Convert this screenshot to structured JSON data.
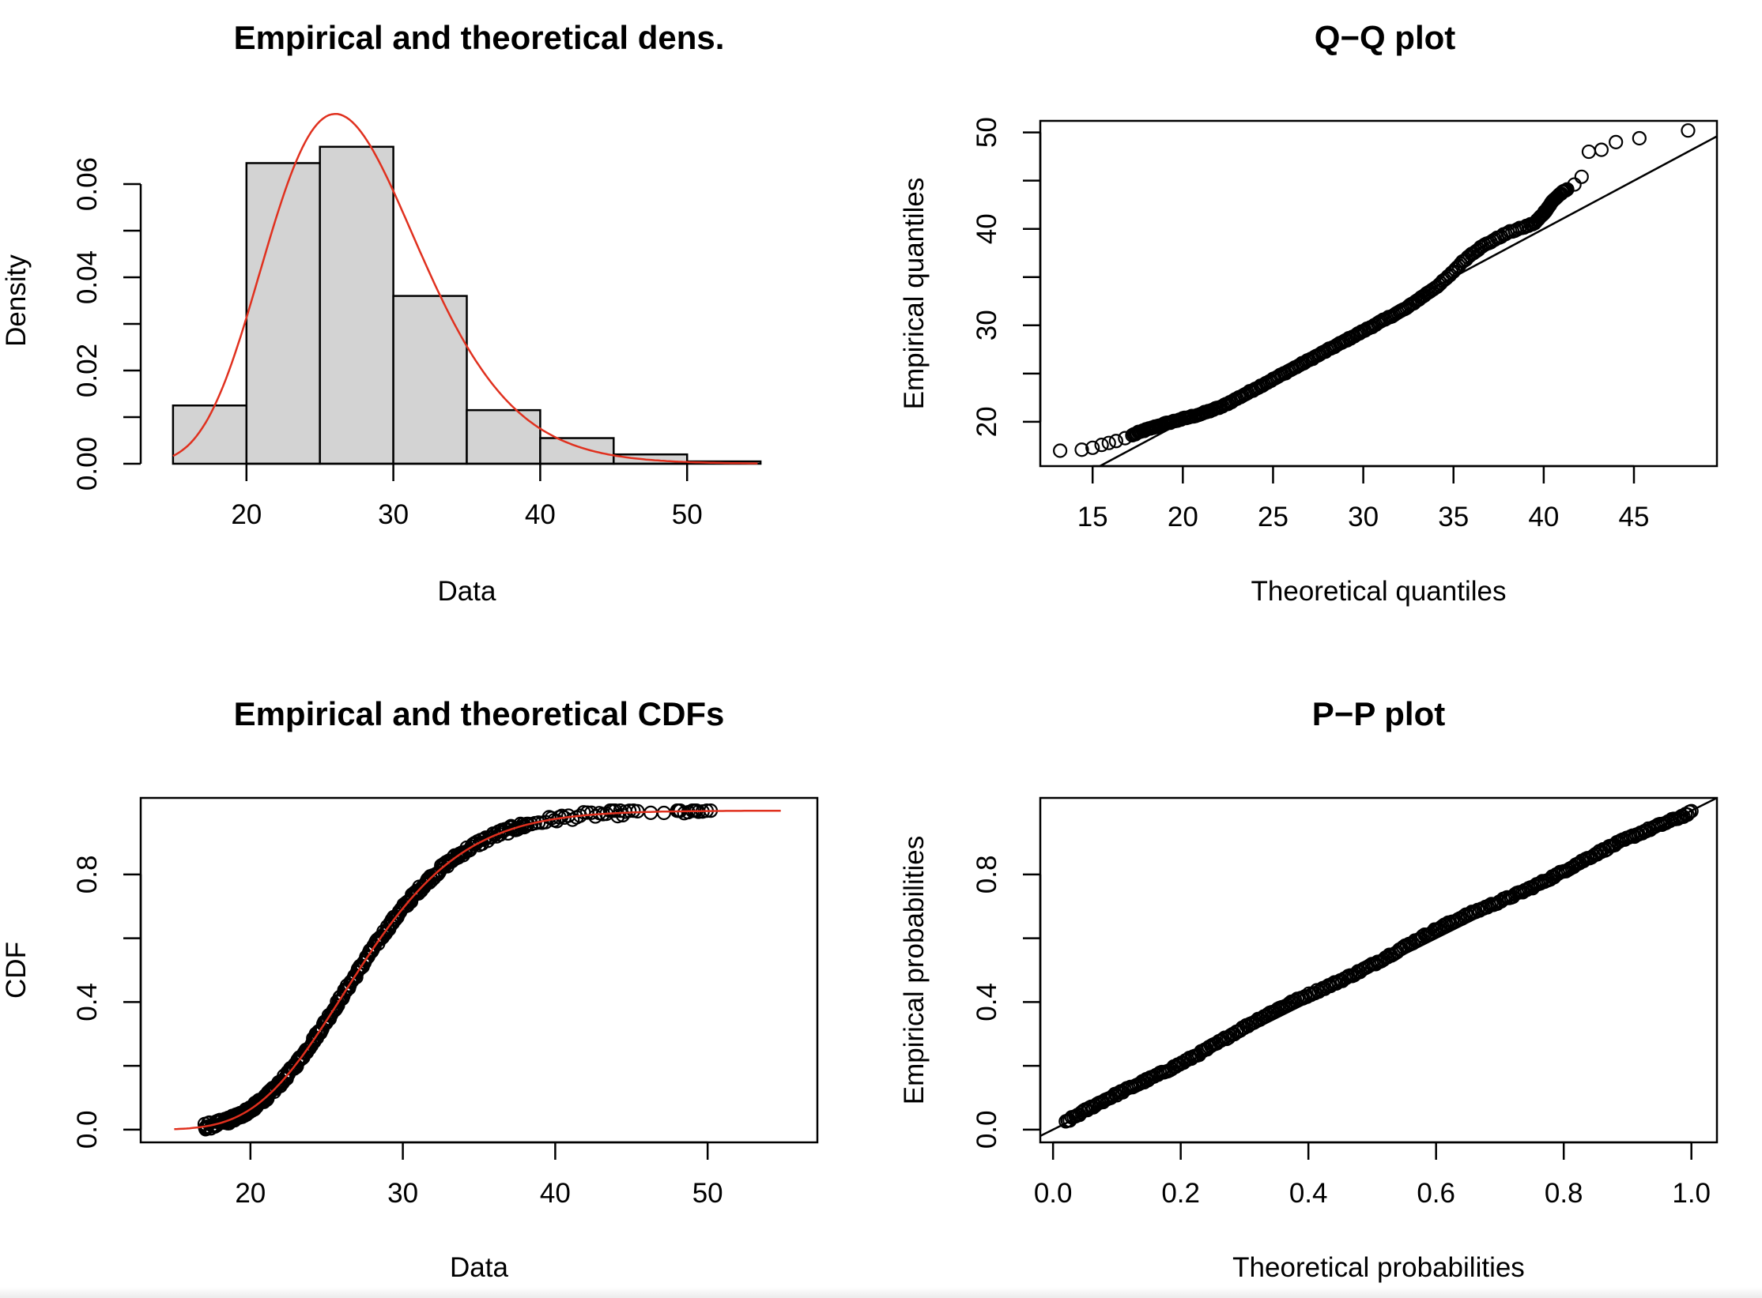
{
  "colors": {
    "axis": "#000000",
    "fit_line": "#e0301e",
    "hist_fill": "#d3d3d3",
    "point_stroke": "#000000"
  },
  "chart_data": [
    {
      "type": "bar",
      "title": "Empirical and theoretical dens.",
      "xlabel": "Data",
      "ylabel": "Density",
      "bins": [
        [
          15,
          20
        ],
        [
          20,
          25
        ],
        [
          25,
          30
        ],
        [
          30,
          35
        ],
        [
          35,
          40
        ],
        [
          40,
          45
        ],
        [
          45,
          50
        ],
        [
          50,
          55
        ]
      ],
      "values": [
        0.0125,
        0.0645,
        0.068,
        0.036,
        0.0115,
        0.0055,
        0.002,
        0.0005
      ],
      "xlim": [
        12.8,
        57.2
      ],
      "ylim": [
        0,
        0.07
      ],
      "xticks": [
        20,
        30,
        40,
        50
      ],
      "yticks": [
        0.0,
        0.02,
        0.04,
        0.06
      ],
      "yticklabels": [
        "0.00",
        "0.02",
        "0.04",
        "0.06"
      ],
      "fitted_density": {
        "distribution_shape": "lognormal",
        "meanlog": 3.3,
        "sdlog": 0.2,
        "x_range": [
          15,
          55
        ],
        "color": "#e0301e"
      },
      "grid": false,
      "box": false
    },
    {
      "type": "scatter",
      "title": "Q−Q plot",
      "xlabel": "Theoretical quantiles",
      "ylabel": "Empirical quantiles",
      "xlim": [
        12.1,
        49.6
      ],
      "ylim": [
        15.4,
        51.2
      ],
      "xticks": [
        15,
        20,
        25,
        30,
        35,
        40,
        45
      ],
      "yticks": [
        20,
        30,
        40,
        50
      ],
      "reference_line": {
        "slope": 1,
        "intercept": 0
      },
      "points": [
        [
          13.2,
          17.0
        ],
        [
          14.4,
          17.1
        ],
        [
          15.0,
          17.3
        ],
        [
          15.5,
          17.6
        ],
        [
          15.9,
          17.8
        ],
        [
          16.3,
          18.0
        ],
        [
          16.8,
          18.3
        ],
        [
          17.2,
          18.6
        ],
        [
          17.7,
          19.0
        ],
        [
          18.2,
          19.3
        ],
        [
          18.7,
          19.6
        ],
        [
          19.2,
          19.9
        ],
        [
          19.8,
          20.2
        ],
        [
          20.4,
          20.5
        ],
        [
          21.0,
          20.8
        ],
        [
          21.6,
          21.2
        ],
        [
          22.2,
          21.6
        ],
        [
          22.8,
          22.2
        ],
        [
          23.4,
          22.8
        ],
        [
          24.0,
          23.4
        ],
        [
          24.6,
          24.0
        ],
        [
          25.2,
          24.6
        ],
        [
          25.8,
          25.2
        ],
        [
          26.4,
          25.8
        ],
        [
          27.0,
          26.4
        ],
        [
          27.6,
          27.0
        ],
        [
          28.2,
          27.6
        ],
        [
          28.8,
          28.2
        ],
        [
          29.4,
          28.8
        ],
        [
          30.0,
          29.4
        ],
        [
          30.6,
          30.0
        ],
        [
          31.2,
          30.6
        ],
        [
          31.8,
          31.2
        ],
        [
          32.4,
          31.8
        ],
        [
          33.0,
          32.6
        ],
        [
          33.6,
          33.4
        ],
        [
          34.2,
          34.2
        ],
        [
          34.8,
          35.2
        ],
        [
          35.4,
          36.4
        ],
        [
          36.0,
          37.4
        ],
        [
          36.6,
          38.2
        ],
        [
          37.3,
          38.9
        ],
        [
          38.0,
          39.6
        ],
        [
          38.8,
          40.1
        ],
        [
          39.5,
          40.6
        ],
        [
          39.9,
          41.4
        ],
        [
          40.2,
          42.1
        ],
        [
          40.5,
          42.9
        ],
        [
          40.9,
          43.6
        ],
        [
          41.3,
          44.1
        ],
        [
          41.7,
          44.6
        ],
        [
          42.1,
          45.4
        ],
        [
          42.5,
          48.0
        ],
        [
          43.2,
          48.2
        ],
        [
          44.0,
          49.0
        ],
        [
          45.3,
          49.4
        ],
        [
          48.0,
          50.2
        ]
      ],
      "grid": false,
      "box": true
    },
    {
      "type": "scatter",
      "title": "Empirical and theoretical CDFs",
      "xlabel": "Data",
      "ylabel": "CDF",
      "xlim": [
        12.8,
        57.2
      ],
      "ylim": [
        -0.04,
        1.04
      ],
      "xticks": [
        20,
        30,
        40,
        50
      ],
      "yticks": [
        0.0,
        0.4,
        0.8
      ],
      "yticklabels": [
        "0.0",
        "0.4",
        "0.8"
      ],
      "fitted_cdf": {
        "distribution_shape": "lognormal",
        "meanlog": 3.3,
        "sdlog": 0.2,
        "x_range": [
          15,
          55
        ],
        "color": "#e0301e"
      },
      "grid": false,
      "box": true
    },
    {
      "type": "scatter",
      "title": "P−P plot",
      "xlabel": "Theoretical probabilities",
      "ylabel": "Empirical probabilities",
      "xlim": [
        -0.02,
        1.04
      ],
      "ylim": [
        -0.04,
        1.04
      ],
      "xticks": [
        0.0,
        0.2,
        0.4,
        0.6,
        0.8,
        1.0
      ],
      "xticklabels": [
        "0.0",
        "0.2",
        "0.4",
        "0.6",
        "0.8",
        "1.0"
      ],
      "yticks": [
        0.0,
        0.4,
        0.8
      ],
      "yticklabels": [
        "0.0",
        "0.4",
        "0.8"
      ],
      "reference_line": {
        "slope": 1,
        "intercept": 0
      },
      "grid": false,
      "box": true
    }
  ]
}
